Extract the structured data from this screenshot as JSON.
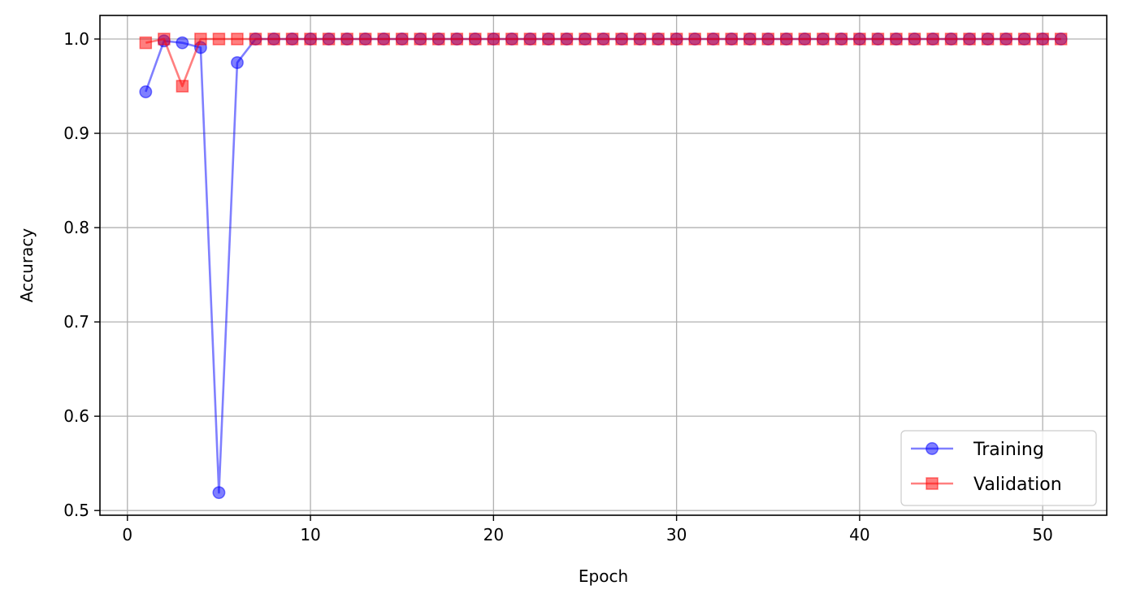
{
  "chart_data": {
    "type": "line",
    "title": "",
    "xlabel": "Epoch",
    "ylabel": "Accuracy",
    "xlim": [
      -1.5,
      53.5
    ],
    "ylim": [
      0.495,
      1.025
    ],
    "xticks": [
      0,
      10,
      20,
      30,
      40,
      50
    ],
    "yticks": [
      0.5,
      0.6,
      0.7,
      0.8,
      0.9,
      1.0
    ],
    "xtick_labels": [
      "0",
      "10",
      "20",
      "30",
      "40",
      "50"
    ],
    "ytick_labels": [
      "0.5",
      "0.6",
      "0.7",
      "0.8",
      "0.9",
      "1.0"
    ],
    "grid": true,
    "legend_position": "lower-right",
    "x": [
      1,
      2,
      3,
      4,
      5,
      6,
      7,
      8,
      9,
      10,
      11,
      12,
      13,
      14,
      15,
      16,
      17,
      18,
      19,
      20,
      21,
      22,
      23,
      24,
      25,
      26,
      27,
      28,
      29,
      30,
      31,
      32,
      33,
      34,
      35,
      36,
      37,
      38,
      39,
      40,
      41,
      42,
      43,
      44,
      45,
      46,
      47,
      48,
      49,
      50,
      51
    ],
    "series": [
      {
        "name": "Training",
        "color": "#0000ff",
        "marker": "circle",
        "values": [
          0.944,
          0.998,
          0.996,
          0.991,
          0.519,
          0.975,
          1,
          1,
          1,
          1,
          1,
          1,
          1,
          1,
          1,
          1,
          1,
          1,
          1,
          1,
          1,
          1,
          1,
          1,
          1,
          1,
          1,
          1,
          1,
          1,
          1,
          1,
          1,
          1,
          1,
          1,
          1,
          1,
          1,
          1,
          1,
          1,
          1,
          1,
          1,
          1,
          1,
          1,
          1,
          1,
          1
        ]
      },
      {
        "name": "Validation",
        "color": "#ff0000",
        "marker": "square",
        "values": [
          0.996,
          1,
          0.95,
          1,
          1,
          1,
          1,
          1,
          1,
          1,
          1,
          1,
          1,
          1,
          1,
          1,
          1,
          1,
          1,
          1,
          1,
          1,
          1,
          1,
          1,
          1,
          1,
          1,
          1,
          1,
          1,
          1,
          1,
          1,
          1,
          1,
          1,
          1,
          1,
          1,
          1,
          1,
          1,
          1,
          1,
          1,
          1,
          1,
          1,
          1,
          1
        ]
      }
    ]
  }
}
